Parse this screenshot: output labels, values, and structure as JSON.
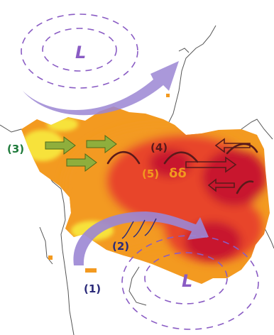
{
  "map": {
    "pressure_labels": [
      "L",
      "L"
    ],
    "labels": {
      "l1": "(1)",
      "l2": "(2)",
      "l3": "(3)",
      "l4": "(4)",
      "l5": "(5)",
      "l5_symbol": "δδ"
    },
    "colors": {
      "low_pressure": "#8a5cc4",
      "low_contour": "#8a5cc4",
      "flow_arrow": "#9b86d4",
      "trade_arrow": "#8fae3c",
      "monsoon_text": "#1e7a3a",
      "jet_line": "#5a1a1a",
      "label_dark": "#2b2b7a",
      "label_orange": "#f29a1e",
      "heat_low": "#f7e23a",
      "heat_mid": "#f39a20",
      "heat_high": "#e8452c",
      "heat_peak": "#c8192d",
      "coastline": "#555555"
    }
  }
}
